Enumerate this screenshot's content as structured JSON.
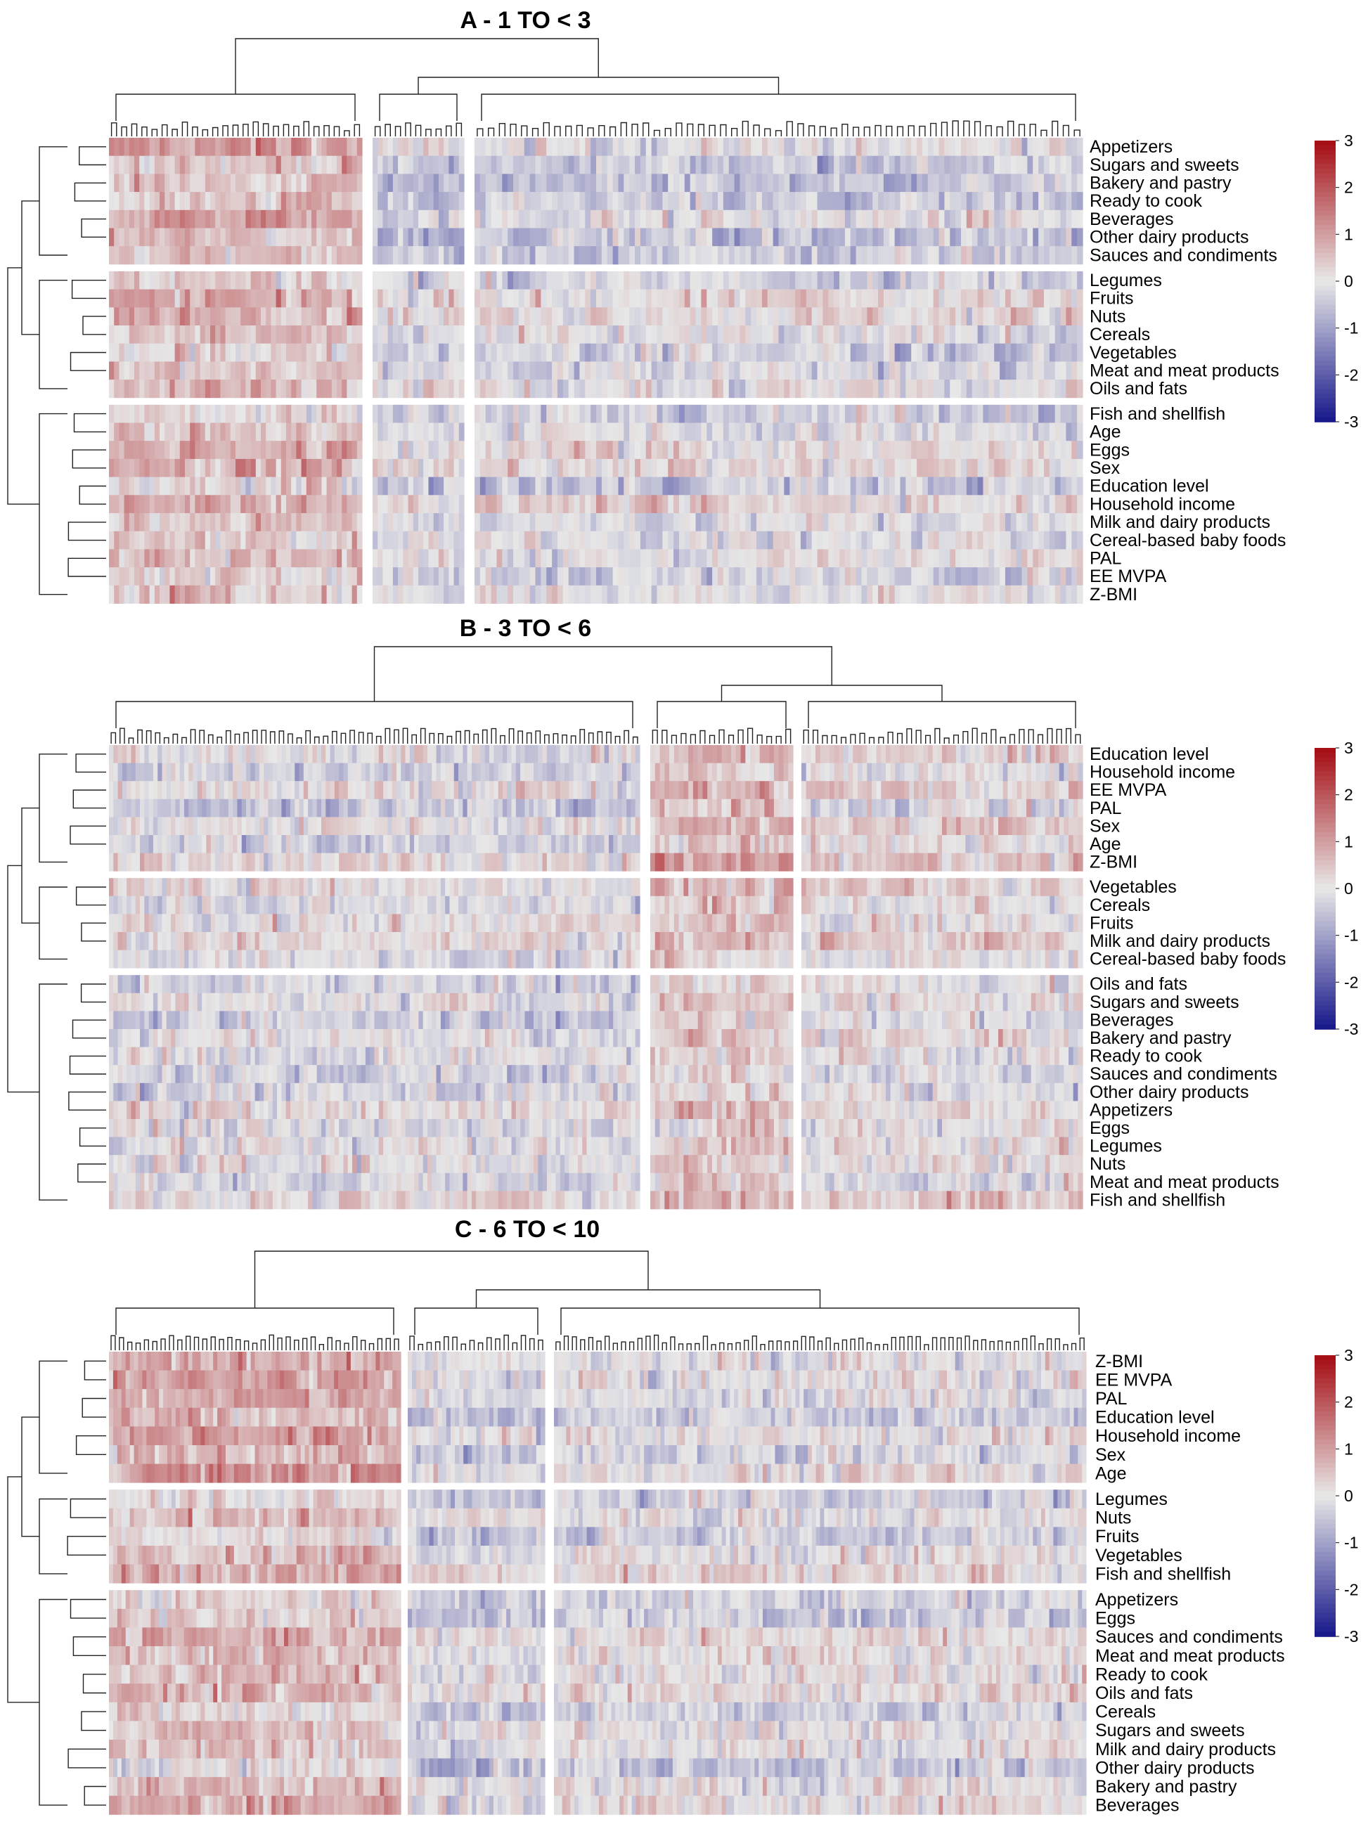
{
  "chart_data": [
    {
      "type": "heatmap",
      "title": "A - 1 TO < 3",
      "color_scale": {
        "min": -3,
        "max": 3,
        "low": "#1a1a8c",
        "mid": "#e8e8e8",
        "high": "#a50f15",
        "ticks": [
          3,
          2,
          1,
          0,
          -1,
          -2,
          -3
        ]
      },
      "column_clusters": [
        {
          "columns": 50,
          "bias": 0.9
        },
        {
          "columns": 18,
          "bias": -0.3
        },
        {
          "columns": 110,
          "bias": -0.15
        }
      ],
      "row_groups": [
        [
          "Appetizers",
          "Sugars and sweets",
          "Bakery and pastry",
          "Ready to cook",
          "Beverages",
          "Other dairy products",
          "Sauces and condiments"
        ],
        [
          "Legumes",
          "Fruits",
          "Nuts",
          "Cereals",
          "Vegetables",
          "Meat and meat products",
          "Oils and fats"
        ],
        [
          "Fish and shellfish",
          "Age",
          "Eggs",
          "Sex",
          "Education level",
          "Household income",
          "Milk and dairy products",
          "Cereal-based baby foods",
          "PAL",
          "EE MVPA",
          "Z-BMI"
        ]
      ],
      "grid": false,
      "legend": "right"
    },
    {
      "type": "heatmap",
      "title": "B - 3 TO < 6",
      "color_scale": {
        "min": -3,
        "max": 3,
        "low": "#1a1a8c",
        "mid": "#e8e8e8",
        "high": "#a50f15",
        "ticks": [
          3,
          2,
          1,
          0,
          -1,
          -2,
          -3
        ]
      },
      "column_clusters": [
        {
          "columns": 120,
          "bias": -0.2
        },
        {
          "columns": 30,
          "bias": 0.6
        },
        {
          "columns": 60,
          "bias": 0.1
        }
      ],
      "row_groups": [
        [
          "Education level",
          "Household income",
          "EE MVPA",
          "PAL",
          "Sex",
          "Age",
          "Z-BMI"
        ],
        [
          "Vegetables",
          "Cereals",
          "Fruits",
          "Milk and dairy products",
          "Cereal-based baby foods"
        ],
        [
          "Oils and fats",
          "Sugars and sweets",
          "Beverages",
          "Bakery and pastry",
          "Ready to cook",
          "Sauces and condiments",
          "Other dairy products",
          "Appetizers",
          "Eggs",
          "Legumes",
          "Nuts",
          "Meat and meat products",
          "Fish and shellfish"
        ]
      ],
      "grid": false,
      "legend": "right"
    },
    {
      "type": "heatmap",
      "title": "C - 6 TO < 10",
      "color_scale": {
        "min": -3,
        "max": 3,
        "low": "#1a1a8c",
        "mid": "#e8e8e8",
        "high": "#a50f15",
        "ticks": [
          3,
          2,
          1,
          0,
          -1,
          -2,
          -3
        ]
      },
      "column_clusters": [
        {
          "columns": 70,
          "bias": 0.8
        },
        {
          "columns": 32,
          "bias": -0.35
        },
        {
          "columns": 130,
          "bias": -0.15
        }
      ],
      "row_groups": [
        [
          "Z-BMI",
          "EE MVPA",
          "PAL",
          "Education level",
          "Household income",
          "Sex",
          "Age"
        ],
        [
          "Legumes",
          "Nuts",
          "Fruits",
          "Vegetables",
          "Fish and shellfish"
        ],
        [
          "Appetizers",
          "Eggs",
          "Sauces and condiments",
          "Meat and meat products",
          "Ready to cook",
          "Oils and fats",
          "Cereals",
          "Sugars and sweets",
          "Milk and dairy products",
          "Other dairy products",
          "Bakery and pastry",
          "Beverages"
        ]
      ],
      "grid": false,
      "legend": "right"
    }
  ]
}
